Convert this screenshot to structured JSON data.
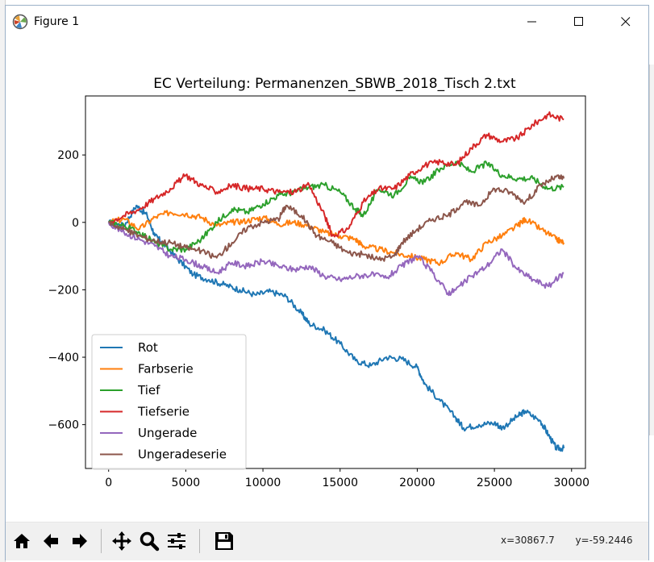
{
  "window": {
    "title": "Figure 1",
    "controls": {
      "minimize": "minimize",
      "maximize": "maximize",
      "close": "close"
    }
  },
  "toolbar": {
    "buttons": [
      "home-icon",
      "back-arrow-icon",
      "forward-arrow-icon",
      "pan-icon",
      "zoom-icon",
      "configure-subplots-icon",
      "save-icon"
    ],
    "coords_x": "x=30867.7",
    "coords_y": "y=-59.2446"
  },
  "chart_data": {
    "type": "line",
    "title": "EC Verteilung: Permanenzen_SBWB_2018_Tisch 2.txt",
    "xlabel": "",
    "ylabel": "",
    "xlim": [
      -1500,
      30900
    ],
    "ylim": [
      -730,
      375
    ],
    "xticks": [
      0,
      5000,
      10000,
      15000,
      20000,
      25000,
      30000
    ],
    "xtick_labels": [
      "0",
      "5000",
      "10000",
      "15000",
      "20000",
      "25000",
      "30000"
    ],
    "yticks": [
      200,
      0,
      -200,
      -400,
      -600
    ],
    "ytick_labels": [
      "200",
      "0",
      "−200",
      "−400",
      "−600"
    ],
    "legend_position": "lower-left",
    "grid": false,
    "series": [
      {
        "name": "Rot",
        "color": "#1f77b4",
        "x": [
          0,
          1000,
          1800,
          2500,
          3000,
          3500,
          4500,
          5500,
          6500,
          7500,
          8500,
          9500,
          10500,
          11500,
          12500,
          13000,
          14000,
          15000,
          16000,
          17000,
          18000,
          19000,
          20000,
          20500,
          21500,
          22500,
          23000,
          24000,
          25000,
          25500,
          26500,
          27000,
          28000,
          28500,
          29000,
          29500
        ],
        "y": [
          0,
          -10,
          50,
          20,
          -40,
          -60,
          -110,
          -155,
          -170,
          -185,
          -200,
          -215,
          -205,
          -220,
          -270,
          -300,
          -320,
          -360,
          -410,
          -425,
          -400,
          -405,
          -430,
          -480,
          -530,
          -580,
          -610,
          -600,
          -595,
          -610,
          -575,
          -560,
          -590,
          -630,
          -670,
          -670
        ]
      },
      {
        "name": "Farbserie",
        "color": "#ff7f0e",
        "x": [
          0,
          1000,
          2000,
          3000,
          4000,
          5000,
          6000,
          7000,
          8000,
          9000,
          10000,
          11000,
          12000,
          13000,
          14000,
          15000,
          16000,
          16500,
          17500,
          18500,
          19500,
          20500,
          21500,
          22500,
          23500,
          24500,
          25500,
          26500,
          27000,
          28000,
          29000,
          29500
        ],
        "y": [
          0,
          10,
          -20,
          15,
          30,
          25,
          15,
          -10,
          0,
          5,
          15,
          -5,
          0,
          -10,
          -30,
          -40,
          -50,
          -70,
          -80,
          -90,
          -100,
          -110,
          -120,
          -90,
          -110,
          -60,
          -40,
          -10,
          10,
          -20,
          -50,
          -60
        ]
      },
      {
        "name": "Tief",
        "color": "#2ca02c",
        "x": [
          0,
          1000,
          2000,
          3000,
          4000,
          5000,
          6000,
          7000,
          8000,
          9000,
          10000,
          11000,
          12000,
          13000,
          14000,
          15000,
          16000,
          16500,
          17500,
          18500,
          19500,
          20500,
          21500,
          22500,
          23500,
          24500,
          25500,
          26500,
          27500,
          28500,
          29500
        ],
        "y": [
          0,
          -10,
          -30,
          -60,
          -80,
          -80,
          -50,
          0,
          40,
          30,
          55,
          80,
          90,
          105,
          110,
          90,
          40,
          20,
          100,
          80,
          130,
          120,
          160,
          180,
          150,
          175,
          140,
          130,
          130,
          100,
          105
        ]
      },
      {
        "name": "Tiefserie",
        "color": "#d62728",
        "x": [
          0,
          1000,
          2000,
          3000,
          4000,
          5000,
          6000,
          7000,
          8000,
          9000,
          10000,
          11000,
          12000,
          13000,
          14000,
          14500,
          15500,
          16500,
          17500,
          18500,
          19500,
          20500,
          21500,
          22500,
          23500,
          24500,
          25500,
          26500,
          27500,
          28500,
          29500
        ],
        "y": [
          0,
          20,
          40,
          70,
          100,
          140,
          110,
          90,
          110,
          100,
          100,
          90,
          90,
          110,
          20,
          -40,
          -20,
          60,
          100,
          100,
          140,
          170,
          180,
          170,
          220,
          260,
          240,
          250,
          290,
          320,
          305
        ]
      },
      {
        "name": "Ungerade",
        "color": "#9467bd",
        "x": [
          0,
          1000,
          2000,
          3000,
          4000,
          5000,
          6000,
          7000,
          8000,
          9000,
          10000,
          11000,
          12000,
          13000,
          14000,
          15000,
          16000,
          17000,
          18000,
          19000,
          20000,
          21000,
          22000,
          22500,
          23500,
          24500,
          25500,
          26500,
          27500,
          28500,
          29500
        ],
        "y": [
          0,
          -30,
          -50,
          -70,
          -100,
          -110,
          -130,
          -150,
          -120,
          -130,
          -115,
          -130,
          -140,
          -130,
          -160,
          -170,
          -160,
          -155,
          -165,
          -130,
          -100,
          -150,
          -210,
          -200,
          -160,
          -130,
          -80,
          -140,
          -170,
          -190,
          -150
        ]
      },
      {
        "name": "Ungeradeserie",
        "color": "#8c564b",
        "x": [
          0,
          1000,
          2000,
          3000,
          4000,
          5000,
          6000,
          7000,
          8000,
          9000,
          10000,
          11000,
          11500,
          12500,
          13500,
          14500,
          15500,
          16500,
          17500,
          18500,
          19000,
          20000,
          21000,
          22000,
          23000,
          24000,
          25000,
          26000,
          27000,
          28000,
          29000,
          29500
        ],
        "y": [
          0,
          -20,
          -40,
          -55,
          -60,
          -75,
          -85,
          -105,
          -60,
          -15,
          0,
          10,
          50,
          20,
          -40,
          -60,
          -90,
          -95,
          -110,
          -100,
          -60,
          -20,
          10,
          20,
          60,
          50,
          100,
          90,
          60,
          110,
          135,
          130
        ]
      }
    ]
  }
}
